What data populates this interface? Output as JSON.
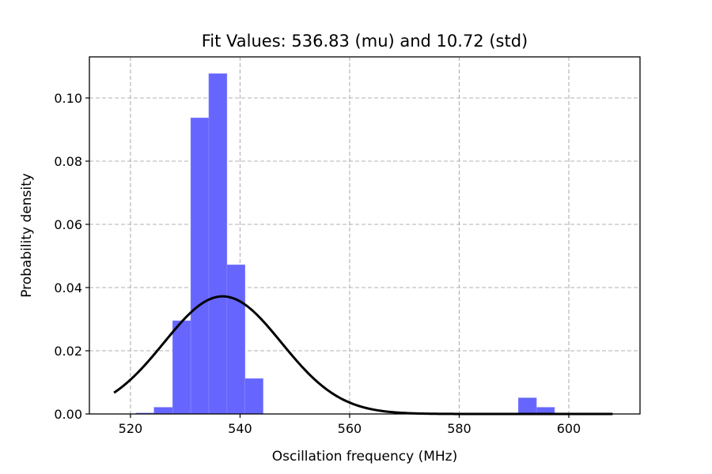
{
  "chart_data": {
    "type": "bar",
    "title": "Fit Values: 536.83 (mu) and 10.72 (std)",
    "xlabel": "Oscillation frequency (MHz)",
    "ylabel": "Probability density",
    "xlim": [
      512.5,
      613
    ],
    "ylim": [
      0,
      0.113
    ],
    "xticks": [
      520,
      540,
      560,
      580,
      600
    ],
    "xtick_labels": [
      "520",
      "540",
      "560",
      "580",
      "600"
    ],
    "yticks": [
      0.0,
      0.02,
      0.04,
      0.06,
      0.08,
      0.1
    ],
    "ytick_labels": [
      "0.00",
      "0.02",
      "0.04",
      "0.06",
      "0.08",
      "0.10"
    ],
    "grid": true,
    "histogram": {
      "name": "",
      "color": "#6666ff",
      "bins": [
        {
          "x0": 521.0,
          "x1": 524.3,
          "value": 0.0003
        },
        {
          "x0": 524.3,
          "x1": 527.7,
          "value": 0.0021
        },
        {
          "x0": 527.7,
          "x1": 531.0,
          "value": 0.0295
        },
        {
          "x0": 531.0,
          "x1": 534.3,
          "value": 0.0937
        },
        {
          "x0": 534.3,
          "x1": 537.6,
          "value": 0.1077
        },
        {
          "x0": 537.6,
          "x1": 540.9,
          "value": 0.0472
        },
        {
          "x0": 540.9,
          "x1": 544.2,
          "value": 0.0112
        },
        {
          "x0": 590.8,
          "x1": 594.1,
          "value": 0.0051
        },
        {
          "x0": 594.1,
          "x1": 597.4,
          "value": 0.0021
        }
      ]
    },
    "fit_curve": {
      "name": "",
      "color": "#000000",
      "mu": 536.83,
      "std": 10.72,
      "x_range": [
        517.0,
        608.0
      ]
    }
  }
}
